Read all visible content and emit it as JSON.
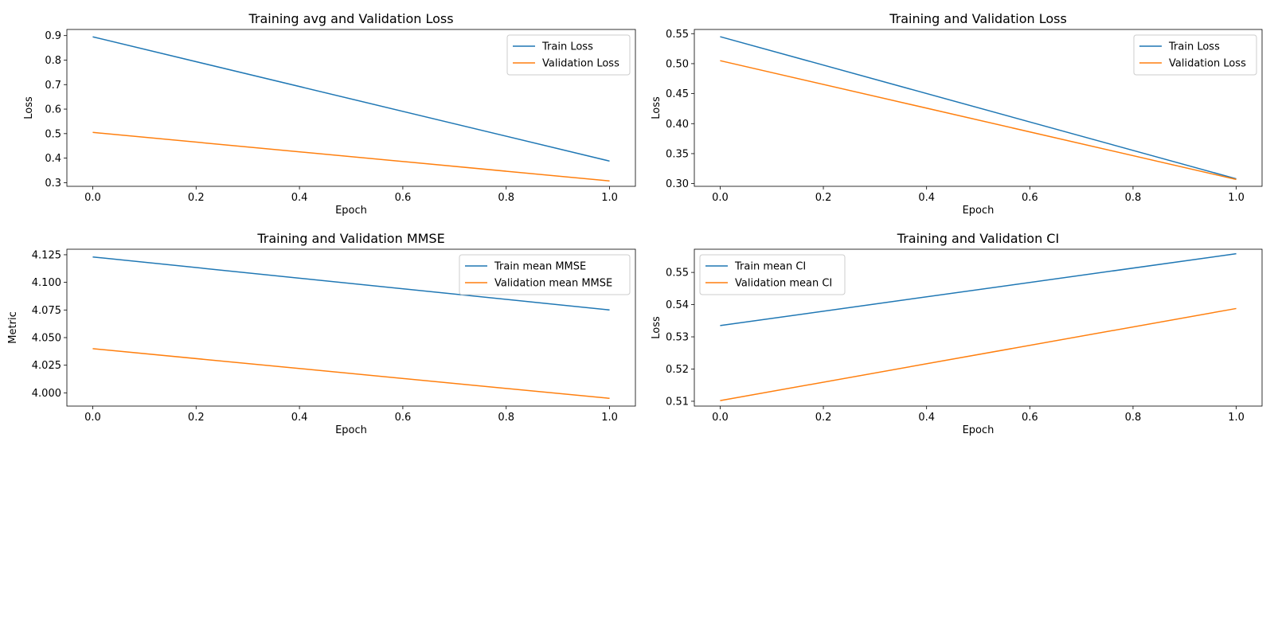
{
  "chart_data": [
    {
      "type": "line",
      "title": "Training avg and Validation Loss",
      "xlabel": "Epoch",
      "ylabel": "Loss",
      "x": [
        0.0,
        1.0
      ],
      "xlim": [
        -0.05,
        1.05
      ],
      "ylim": [
        0.285,
        0.925
      ],
      "xticks": [
        0.0,
        0.2,
        0.4,
        0.6,
        0.8,
        1.0
      ],
      "xtick_labels": [
        "0.0",
        "0.2",
        "0.4",
        "0.6",
        "0.8",
        "1.0"
      ],
      "yticks": [
        0.3,
        0.4,
        0.5,
        0.6,
        0.7,
        0.8,
        0.9
      ],
      "ytick_labels": [
        "0.3",
        "0.4",
        "0.5",
        "0.6",
        "0.7",
        "0.8",
        "0.9"
      ],
      "series": [
        {
          "name": "Train Loss",
          "values": [
            0.895,
            0.388
          ],
          "color": "#1f77b4"
        },
        {
          "name": "Validation Loss",
          "values": [
            0.505,
            0.307
          ],
          "color": "#ff7f0e"
        }
      ],
      "legend": "upper right",
      "grid": false
    },
    {
      "type": "line",
      "title": "Training and Validation Loss",
      "xlabel": "Epoch",
      "ylabel": "Loss",
      "x": [
        0.0,
        1.0
      ],
      "xlim": [
        -0.05,
        1.05
      ],
      "ylim": [
        0.2955,
        0.557
      ],
      "xticks": [
        0.0,
        0.2,
        0.4,
        0.6,
        0.8,
        1.0
      ],
      "xtick_labels": [
        "0.0",
        "0.2",
        "0.4",
        "0.6",
        "0.8",
        "1.0"
      ],
      "yticks": [
        0.3,
        0.35,
        0.4,
        0.45,
        0.5,
        0.55
      ],
      "ytick_labels": [
        "0.30",
        "0.35",
        "0.40",
        "0.45",
        "0.50",
        "0.55"
      ],
      "series": [
        {
          "name": "Train Loss",
          "values": [
            0.545,
            0.308
          ],
          "color": "#1f77b4"
        },
        {
          "name": "Validation Loss",
          "values": [
            0.505,
            0.307
          ],
          "color": "#ff7f0e"
        }
      ],
      "legend": "upper right",
      "grid": false
    },
    {
      "type": "line",
      "title": "Training and Validation MMSE",
      "xlabel": "Epoch",
      "ylabel": "Metric",
      "x": [
        0.0,
        1.0
      ],
      "xlim": [
        -0.05,
        1.05
      ],
      "ylim": [
        3.988,
        4.13
      ],
      "xticks": [
        0.0,
        0.2,
        0.4,
        0.6,
        0.8,
        1.0
      ],
      "xtick_labels": [
        "0.0",
        "0.2",
        "0.4",
        "0.6",
        "0.8",
        "1.0"
      ],
      "yticks": [
        4.0,
        4.025,
        4.05,
        4.075,
        4.1,
        4.125
      ],
      "ytick_labels": [
        "4.000",
        "4.025",
        "4.050",
        "4.075",
        "4.100",
        "4.125"
      ],
      "series": [
        {
          "name": "Train mean MMSE",
          "values": [
            4.123,
            4.075
          ],
          "color": "#1f77b4"
        },
        {
          "name": "Validation mean MMSE",
          "values": [
            4.04,
            3.995
          ],
          "color": "#ff7f0e"
        }
      ],
      "legend": "upper right",
      "grid": false
    },
    {
      "type": "line",
      "title": "Training and Validation CI",
      "xlabel": "Epoch",
      "ylabel": "Loss",
      "x": [
        0.0,
        1.0
      ],
      "xlim": [
        -0.05,
        1.05
      ],
      "ylim": [
        0.5085,
        0.5572
      ],
      "xticks": [
        0.0,
        0.2,
        0.4,
        0.6,
        0.8,
        1.0
      ],
      "xtick_labels": [
        "0.0",
        "0.2",
        "0.4",
        "0.6",
        "0.8",
        "1.0"
      ],
      "yticks": [
        0.51,
        0.52,
        0.53,
        0.54,
        0.55
      ],
      "ytick_labels": [
        "0.51",
        "0.52",
        "0.53",
        "0.54",
        "0.55"
      ],
      "series": [
        {
          "name": "Train mean CI",
          "values": [
            0.5335,
            0.5558
          ],
          "color": "#1f77b4"
        },
        {
          "name": "Validation mean CI",
          "values": [
            0.5102,
            0.5388
          ],
          "color": "#ff7f0e"
        }
      ],
      "legend": "upper left",
      "grid": false
    }
  ]
}
